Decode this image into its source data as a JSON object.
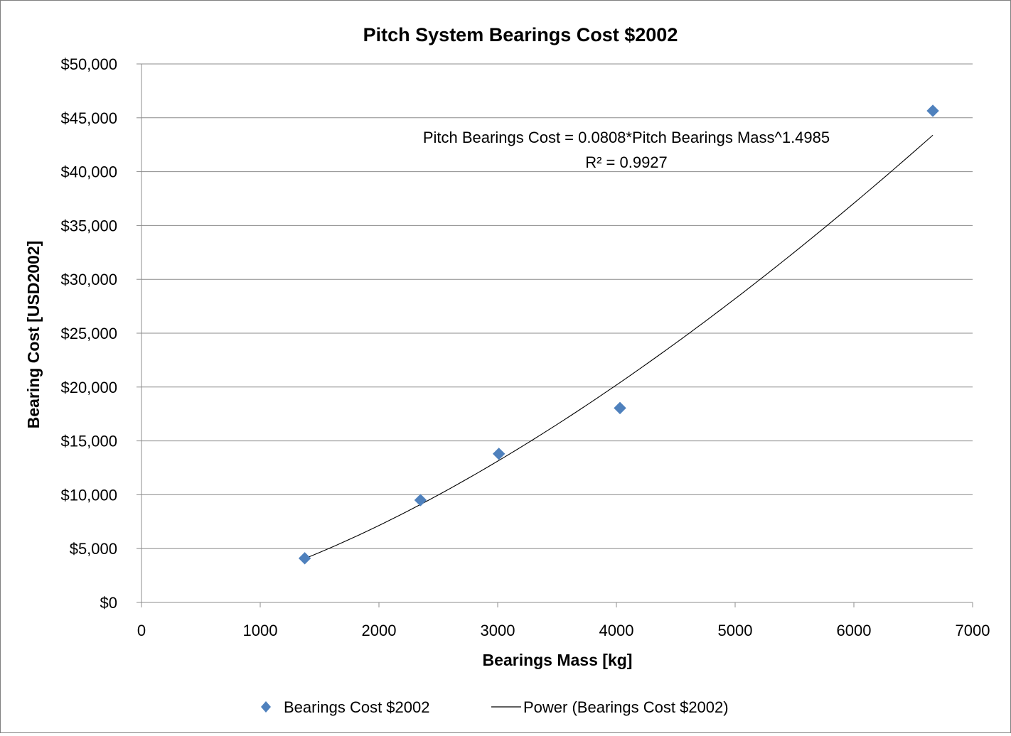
{
  "chart_data": {
    "type": "scatter",
    "title": "Pitch System Bearings Cost $2002",
    "xlabel": "Bearings Mass [kg]",
    "ylabel": "Bearing Cost [USD2002]",
    "xlim": [
      0,
      7000
    ],
    "ylim": [
      0,
      50000
    ],
    "x_ticks": [
      "0",
      "1000",
      "2000",
      "3000",
      "4000",
      "5000",
      "6000",
      "7000"
    ],
    "y_ticks": [
      "$0",
      "$5,000",
      "$10,000",
      "$15,000",
      "$20,000",
      "$25,000",
      "$30,000",
      "$35,000",
      "$40,000",
      "$45,000",
      "$50,000"
    ],
    "x_tick_values": [
      0,
      1000,
      2000,
      3000,
      4000,
      5000,
      6000,
      7000
    ],
    "y_tick_values": [
      0,
      5000,
      10000,
      15000,
      20000,
      25000,
      30000,
      35000,
      40000,
      45000,
      50000
    ],
    "grid": "horizontal",
    "legend_position": "bottom",
    "series": [
      {
        "name": "Bearings Cost $2002",
        "marker": "diamond",
        "color": "#4f81bd",
        "points": [
          {
            "x": 1375,
            "y": 4100
          },
          {
            "x": 2350,
            "y": 9500
          },
          {
            "x": 3010,
            "y": 13800
          },
          {
            "x": 4030,
            "y": 18050
          },
          {
            "x": 6665,
            "y": 45650
          }
        ]
      }
    ],
    "trendline": {
      "name": "Power (Bearings Cost $2002)",
      "type": "power",
      "coefficient": 0.0808,
      "exponent": 1.4985,
      "x_range": [
        1375,
        6665
      ],
      "color": "#000000"
    },
    "annotations": [
      "Pitch Bearings Cost = 0.0808*Pitch Bearings Mass^1.4985",
      "R² = 0.9927"
    ]
  }
}
